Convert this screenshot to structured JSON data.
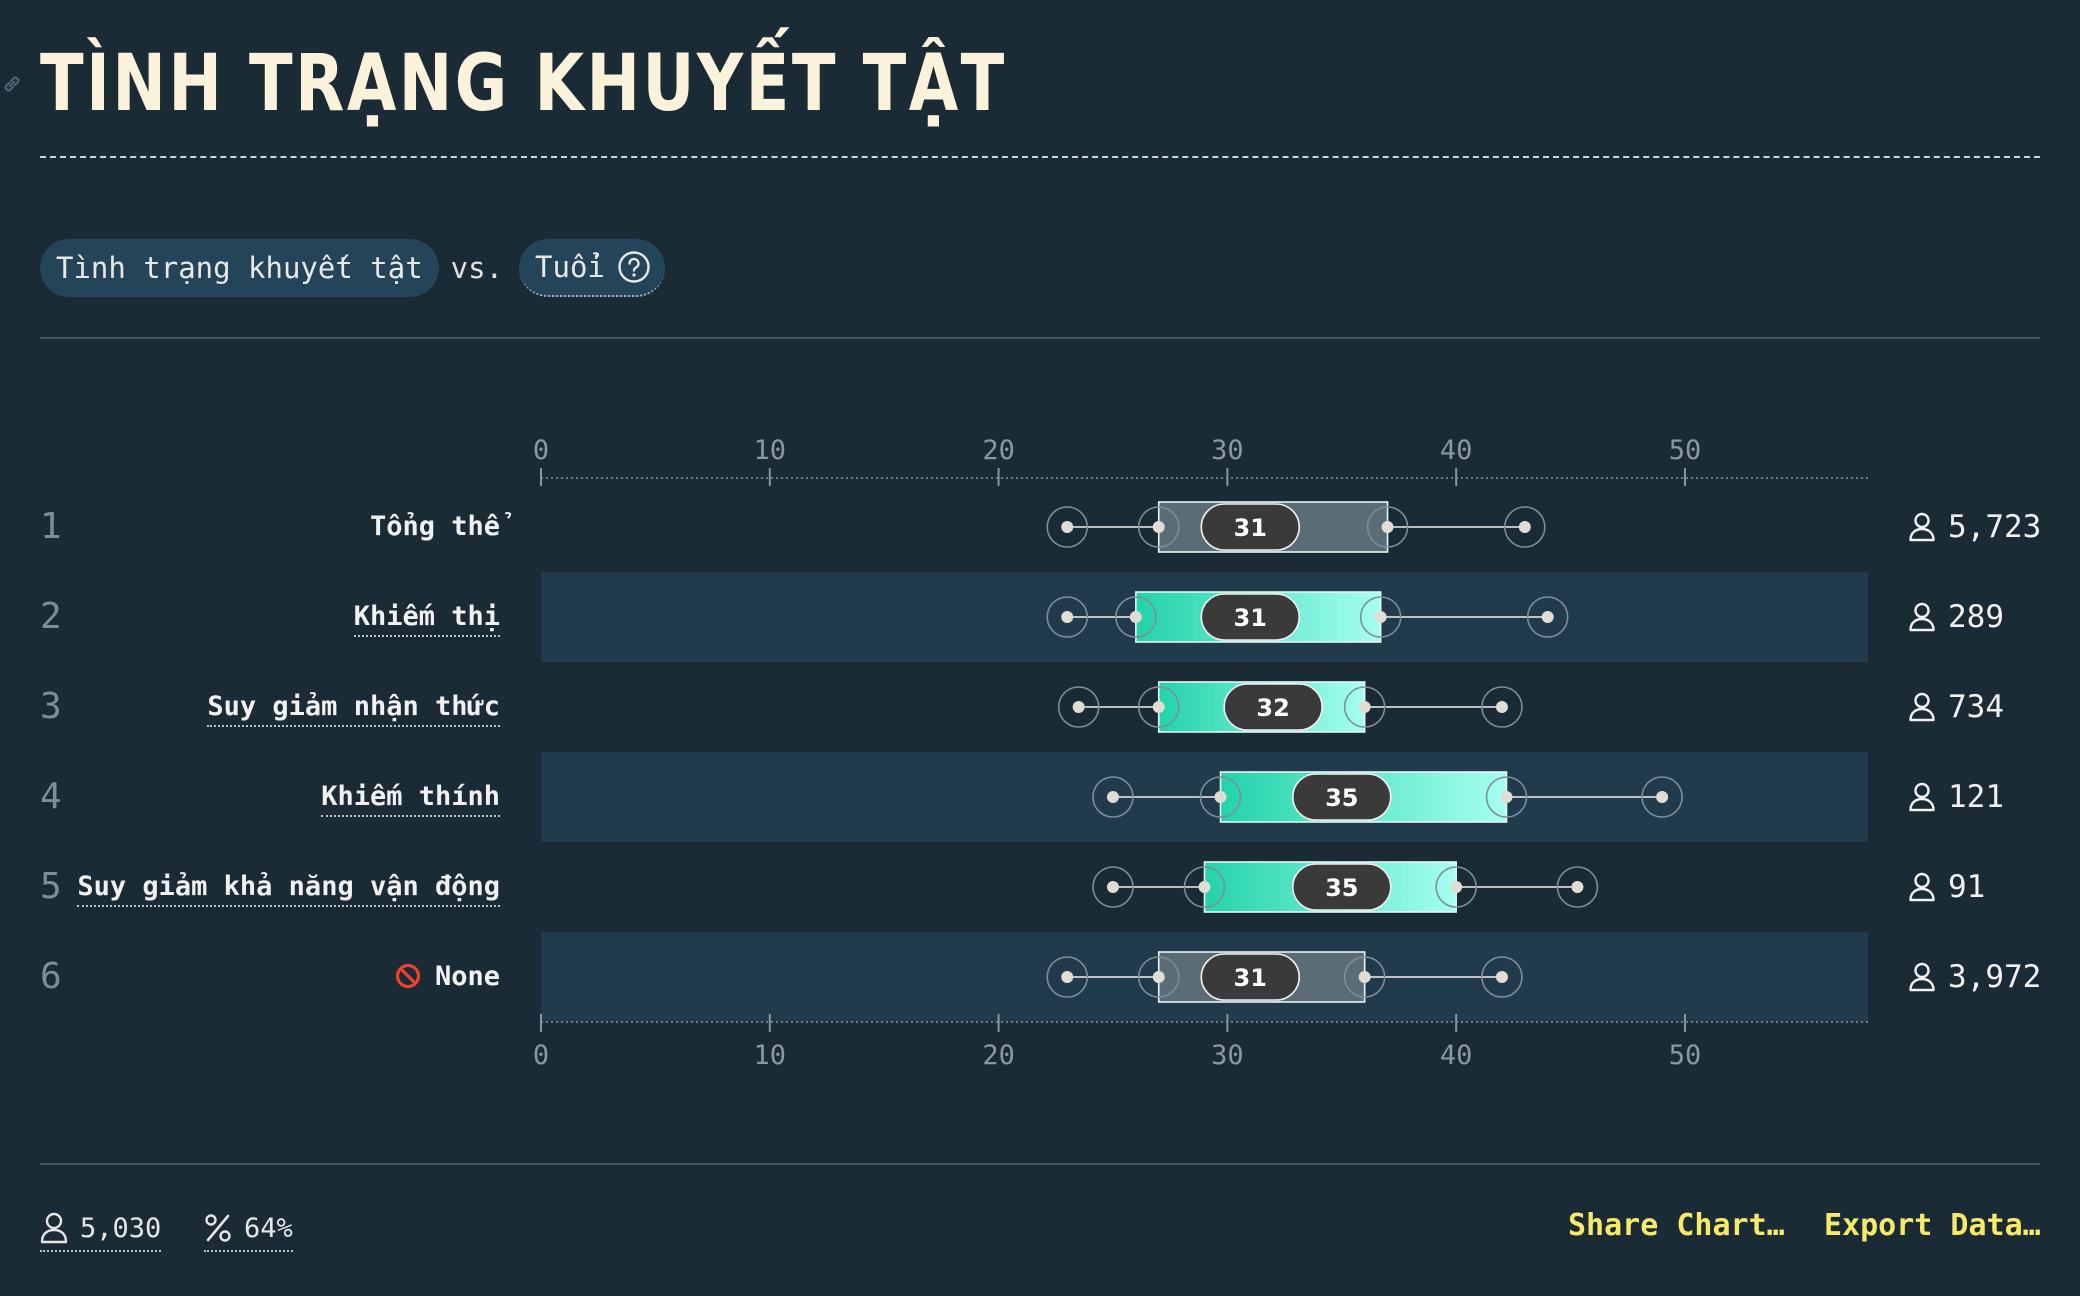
{
  "header": {
    "title": "TÌNH TRẠNG KHUYẾT TẬT"
  },
  "selector": {
    "x_label": "Tình trạng khuyết tật",
    "vs": "vs.",
    "y_label": "Tuổi"
  },
  "chart_data": {
    "type": "box",
    "axis": {
      "range": [
        0,
        58
      ],
      "ticks": [
        0,
        10,
        20,
        30,
        40,
        50
      ]
    },
    "rows": [
      {
        "rank": "1",
        "label": "Tổng thể",
        "highlight": false,
        "whisker_low": 23,
        "q1": 27,
        "median": 31,
        "q3": 37,
        "whisker_high": 43,
        "count": "5,723"
      },
      {
        "rank": "2",
        "label": "Khiếm thị",
        "highlight": true,
        "whisker_low": 23,
        "q1": 26,
        "median": 31,
        "q3": 36.7,
        "whisker_high": 44,
        "count": "289"
      },
      {
        "rank": "3",
        "label": "Suy giảm nhận thức",
        "highlight": true,
        "whisker_low": 23.5,
        "q1": 27,
        "median": 32,
        "q3": 36,
        "whisker_high": 42,
        "count": "734"
      },
      {
        "rank": "4",
        "label": "Khiếm thính",
        "highlight": true,
        "whisker_low": 25,
        "q1": 29.7,
        "median": 35,
        "q3": 42.2,
        "whisker_high": 49,
        "count": "121"
      },
      {
        "rank": "5",
        "label": "Suy giảm khả năng vận động",
        "highlight": true,
        "whisker_low": 25,
        "q1": 29,
        "median": 35,
        "q3": 40,
        "whisker_high": 45.3,
        "count": "91"
      },
      {
        "rank": "6",
        "label": "None",
        "highlight": false,
        "whisker_low": 23,
        "q1": 27,
        "median": 31,
        "q3": 36,
        "whisker_high": 42,
        "count": "3,972"
      }
    ],
    "colors": {
      "highlight_start": "#23d3a9",
      "highlight_end": "#a6fff0",
      "neutral_box": "#5b6c77",
      "median_pill": "#3a3a3a",
      "row_band": "#223b4c"
    }
  },
  "footer": {
    "people": "5,030",
    "percent": "64%",
    "share": "Share Chart…",
    "export": "Export Data…"
  }
}
